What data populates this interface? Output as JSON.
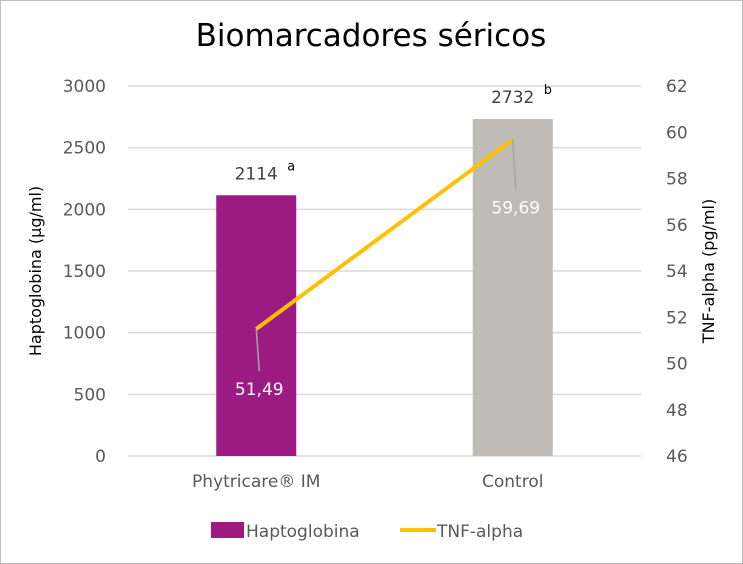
{
  "chart_data": {
    "type": "bar",
    "title": "Biomarcadores séricos",
    "categories": [
      "Phytricare® IM",
      "Control"
    ],
    "ylabel": "Haptoglobina (µg/ml)",
    "y2label": "TNF-alpha (pg/ml)",
    "ylim": [
      0,
      3000
    ],
    "y2lim": [
      46,
      62
    ],
    "yticks": [
      "0",
      "500",
      "1000",
      "1500",
      "2000",
      "2500",
      "3000"
    ],
    "y2ticks": [
      "46",
      "48",
      "50",
      "52",
      "54",
      "56",
      "58",
      "60",
      "62"
    ],
    "grid": true,
    "legend": "bottom",
    "series": [
      {
        "name": "Haptoglobina",
        "kind": "bar",
        "axis": "left",
        "values": [
          2114,
          2732
        ],
        "labels": [
          "2114",
          "2732"
        ],
        "superscripts": [
          "a",
          "b"
        ],
        "colors": [
          "#9B1B82",
          "#BFBBB6"
        ]
      },
      {
        "name": "TNF-alpha",
        "kind": "line",
        "axis": "right",
        "values": [
          51.49,
          59.69
        ],
        "labels": [
          "51,49",
          "59,69"
        ],
        "color": "#FFC000"
      }
    ]
  }
}
